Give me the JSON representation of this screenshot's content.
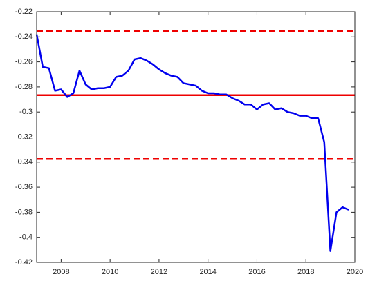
{
  "chart_data": {
    "type": "line",
    "x": [
      2007,
      2007.25,
      2007.5,
      2007.75,
      2008,
      2008.25,
      2008.5,
      2008.75,
      2009,
      2009.25,
      2009.5,
      2009.75,
      2010,
      2010.25,
      2010.5,
      2010.75,
      2011,
      2011.25,
      2011.5,
      2011.75,
      2012,
      2012.25,
      2012.5,
      2012.75,
      2013,
      2013.25,
      2013.5,
      2013.75,
      2014,
      2014.25,
      2014.5,
      2014.75,
      2015,
      2015.25,
      2015.5,
      2015.75,
      2016,
      2016.25,
      2016.5,
      2016.75,
      2017,
      2017.25,
      2017.5,
      2017.75,
      2018,
      2018.25,
      2018.5,
      2018.75,
      2019,
      2019.25,
      2019.5,
      2019.75
    ],
    "series": [
      {
        "color": "#0000ee",
        "values": [
          -0.238,
          -0.264,
          -0.265,
          -0.283,
          -0.282,
          -0.288,
          -0.285,
          -0.267,
          -0.278,
          -0.282,
          -0.281,
          -0.281,
          -0.28,
          -0.272,
          -0.271,
          -0.267,
          -0.258,
          -0.257,
          -0.259,
          -0.262,
          -0.266,
          -0.269,
          -0.271,
          -0.272,
          -0.277,
          -0.278,
          -0.279,
          -0.283,
          -0.285,
          -0.285,
          -0.286,
          -0.286,
          -0.289,
          -0.291,
          -0.294,
          -0.294,
          -0.298,
          -0.294,
          -0.293,
          -0.298,
          -0.297,
          -0.3,
          -0.301,
          -0.303,
          -0.303,
          -0.305,
          -0.305,
          -0.324,
          -0.411,
          -0.38,
          -0.376,
          -0.378
        ]
      }
    ],
    "hlines": [
      {
        "value": -0.2865,
        "color": "#ee0000",
        "style": "solid"
      },
      {
        "value": -0.2355,
        "color": "#ee0000",
        "style": "dashed"
      },
      {
        "value": -0.3375,
        "color": "#ee0000",
        "style": "dashed"
      }
    ],
    "xlim": [
      2007,
      2020
    ],
    "xticks": [
      2008,
      2010,
      2012,
      2014,
      2016,
      2018,
      2020
    ],
    "ylim": [
      -0.42,
      -0.22
    ],
    "yticks": [
      -0.42,
      -0.4,
      -0.38,
      -0.36,
      -0.34,
      -0.32,
      -0.3,
      -0.28,
      -0.26,
      -0.24,
      -0.22
    ]
  }
}
